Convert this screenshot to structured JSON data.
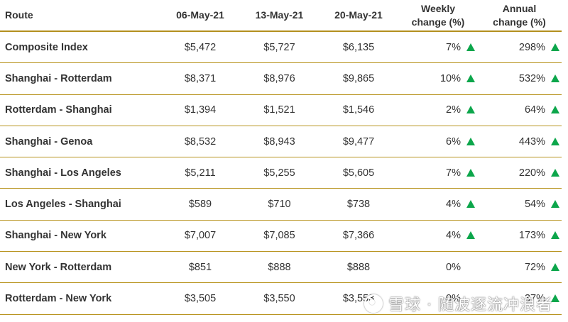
{
  "headers": {
    "route": "Route",
    "d1": "06-May-21",
    "d2": "13-May-21",
    "d3": "20-May-21",
    "weekly_line1": "Weekly",
    "weekly_line2": "change (%)",
    "annual_line1": "Annual",
    "annual_line2": "change (%)"
  },
  "rows": [
    {
      "route": "Composite Index",
      "d1": "$5,472",
      "d2": "$5,727",
      "d3": "$6,135",
      "weekly": "7%",
      "weekly_up": true,
      "annual": "298%",
      "annual_up": true
    },
    {
      "route": "Shanghai - Rotterdam",
      "d1": "$8,371",
      "d2": "$8,976",
      "d3": "$9,865",
      "weekly": "10%",
      "weekly_up": true,
      "annual": "532%",
      "annual_up": true
    },
    {
      "route": "Rotterdam - Shanghai",
      "d1": "$1,394",
      "d2": "$1,521",
      "d3": "$1,546",
      "weekly": "2%",
      "weekly_up": true,
      "annual": "64%",
      "annual_up": true
    },
    {
      "route": "Shanghai - Genoa",
      "d1": "$8,532",
      "d2": "$8,943",
      "d3": "$9,477",
      "weekly": "6%",
      "weekly_up": true,
      "annual": "443%",
      "annual_up": true
    },
    {
      "route": "Shanghai - Los Angeles",
      "d1": "$5,211",
      "d2": "$5,255",
      "d3": "$5,605",
      "weekly": "7%",
      "weekly_up": true,
      "annual": "220%",
      "annual_up": true
    },
    {
      "route": "Los Angeles - Shanghai",
      "d1": "$589",
      "d2": "$710",
      "d3": "$738",
      "weekly": "4%",
      "weekly_up": true,
      "annual": "54%",
      "annual_up": true
    },
    {
      "route": "Shanghai - New York",
      "d1": "$7,007",
      "d2": "$7,085",
      "d3": "$7,366",
      "weekly": "4%",
      "weekly_up": true,
      "annual": "173%",
      "annual_up": true
    },
    {
      "route": "New York - Rotterdam",
      "d1": "$851",
      "d2": "$888",
      "d3": "$888",
      "weekly": "0%",
      "weekly_up": false,
      "annual": "72%",
      "annual_up": true
    },
    {
      "route": "Rotterdam - New York",
      "d1": "$3,505",
      "d2": "$3,550",
      "d3": "$3,553",
      "weekly": "0%",
      "weekly_up": false,
      "annual": "37%",
      "annual_up": true
    }
  ],
  "colors": {
    "up_arrow": "#0ca64b",
    "rule": "#b8941f"
  },
  "icons": {
    "up": "triangle-up-icon",
    "watermark": "xueqiu-logo-icon"
  },
  "watermark": {
    "text": "雪球 · 随波逐流冲浪者"
  }
}
